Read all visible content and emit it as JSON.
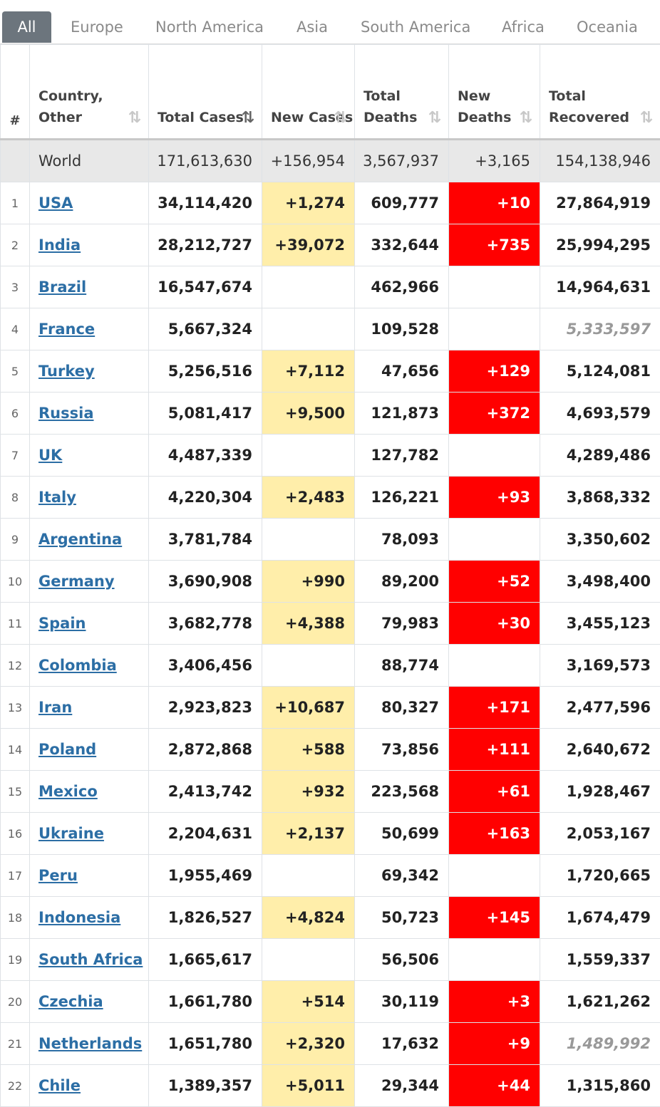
{
  "tabs": [
    "All",
    "Europe",
    "North America",
    "Asia",
    "South America",
    "Africa",
    "Oceania"
  ],
  "headers": {
    "num": "#",
    "country": "Country, Other",
    "total_cases": "Total Cases",
    "new_cases": "New Cases",
    "total_deaths": "Total Deaths",
    "new_deaths": "New Deaths",
    "total_recovered": "Total Recovered"
  },
  "sort_icon": "⇅",
  "world": {
    "name": "World",
    "total_cases": "171,613,630",
    "new_cases": "+156,954",
    "total_deaths": "3,567,937",
    "new_deaths": "+3,165",
    "total_recovered": "154,138,946"
  },
  "rows": [
    {
      "num": "1",
      "country": "USA",
      "total_cases": "34,114,420",
      "new_cases": "+1,274",
      "total_deaths": "609,777",
      "new_deaths": "+10",
      "total_recovered": "27,864,919",
      "recovered_estimated": false
    },
    {
      "num": "2",
      "country": "India",
      "total_cases": "28,212,727",
      "new_cases": "+39,072",
      "total_deaths": "332,644",
      "new_deaths": "+735",
      "total_recovered": "25,994,295",
      "recovered_estimated": false
    },
    {
      "num": "3",
      "country": "Brazil",
      "total_cases": "16,547,674",
      "new_cases": "",
      "total_deaths": "462,966",
      "new_deaths": "",
      "total_recovered": "14,964,631",
      "recovered_estimated": false
    },
    {
      "num": "4",
      "country": "France",
      "total_cases": "5,667,324",
      "new_cases": "",
      "total_deaths": "109,528",
      "new_deaths": "",
      "total_recovered": "5,333,597",
      "recovered_estimated": true
    },
    {
      "num": "5",
      "country": "Turkey",
      "total_cases": "5,256,516",
      "new_cases": "+7,112",
      "total_deaths": "47,656",
      "new_deaths": "+129",
      "total_recovered": "5,124,081",
      "recovered_estimated": false
    },
    {
      "num": "6",
      "country": "Russia",
      "total_cases": "5,081,417",
      "new_cases": "+9,500",
      "total_deaths": "121,873",
      "new_deaths": "+372",
      "total_recovered": "4,693,579",
      "recovered_estimated": false
    },
    {
      "num": "7",
      "country": "UK",
      "total_cases": "4,487,339",
      "new_cases": "",
      "total_deaths": "127,782",
      "new_deaths": "",
      "total_recovered": "4,289,486",
      "recovered_estimated": false
    },
    {
      "num": "8",
      "country": "Italy",
      "total_cases": "4,220,304",
      "new_cases": "+2,483",
      "total_deaths": "126,221",
      "new_deaths": "+93",
      "total_recovered": "3,868,332",
      "recovered_estimated": false
    },
    {
      "num": "9",
      "country": "Argentina",
      "total_cases": "3,781,784",
      "new_cases": "",
      "total_deaths": "78,093",
      "new_deaths": "",
      "total_recovered": "3,350,602",
      "recovered_estimated": false
    },
    {
      "num": "10",
      "country": "Germany",
      "total_cases": "3,690,908",
      "new_cases": "+990",
      "total_deaths": "89,200",
      "new_deaths": "+52",
      "total_recovered": "3,498,400",
      "recovered_estimated": false
    },
    {
      "num": "11",
      "country": "Spain",
      "total_cases": "3,682,778",
      "new_cases": "+4,388",
      "total_deaths": "79,983",
      "new_deaths": "+30",
      "total_recovered": "3,455,123",
      "recovered_estimated": false
    },
    {
      "num": "12",
      "country": "Colombia",
      "total_cases": "3,406,456",
      "new_cases": "",
      "total_deaths": "88,774",
      "new_deaths": "",
      "total_recovered": "3,169,573",
      "recovered_estimated": false
    },
    {
      "num": "13",
      "country": "Iran",
      "total_cases": "2,923,823",
      "new_cases": "+10,687",
      "total_deaths": "80,327",
      "new_deaths": "+171",
      "total_recovered": "2,477,596",
      "recovered_estimated": false
    },
    {
      "num": "14",
      "country": "Poland",
      "total_cases": "2,872,868",
      "new_cases": "+588",
      "total_deaths": "73,856",
      "new_deaths": "+111",
      "total_recovered": "2,640,672",
      "recovered_estimated": false
    },
    {
      "num": "15",
      "country": "Mexico",
      "total_cases": "2,413,742",
      "new_cases": "+932",
      "total_deaths": "223,568",
      "new_deaths": "+61",
      "total_recovered": "1,928,467",
      "recovered_estimated": false
    },
    {
      "num": "16",
      "country": "Ukraine",
      "total_cases": "2,204,631",
      "new_cases": "+2,137",
      "total_deaths": "50,699",
      "new_deaths": "+163",
      "total_recovered": "2,053,167",
      "recovered_estimated": false
    },
    {
      "num": "17",
      "country": "Peru",
      "total_cases": "1,955,469",
      "new_cases": "",
      "total_deaths": "69,342",
      "new_deaths": "",
      "total_recovered": "1,720,665",
      "recovered_estimated": false
    },
    {
      "num": "18",
      "country": "Indonesia",
      "total_cases": "1,826,527",
      "new_cases": "+4,824",
      "total_deaths": "50,723",
      "new_deaths": "+145",
      "total_recovered": "1,674,479",
      "recovered_estimated": false
    },
    {
      "num": "19",
      "country": "South Africa",
      "total_cases": "1,665,617",
      "new_cases": "",
      "total_deaths": "56,506",
      "new_deaths": "",
      "total_recovered": "1,559,337",
      "recovered_estimated": false
    },
    {
      "num": "20",
      "country": "Czechia",
      "total_cases": "1,661,780",
      "new_cases": "+514",
      "total_deaths": "30,119",
      "new_deaths": "+3",
      "total_recovered": "1,621,262",
      "recovered_estimated": false
    },
    {
      "num": "21",
      "country": "Netherlands",
      "total_cases": "1,651,780",
      "new_cases": "+2,320",
      "total_deaths": "17,632",
      "new_deaths": "+9",
      "total_recovered": "1,489,992",
      "recovered_estimated": true
    },
    {
      "num": "22",
      "country": "Chile",
      "total_cases": "1,389,357",
      "new_cases": "+5,011",
      "total_deaths": "29,344",
      "new_deaths": "+44",
      "total_recovered": "1,315,860",
      "recovered_estimated": false
    }
  ]
}
